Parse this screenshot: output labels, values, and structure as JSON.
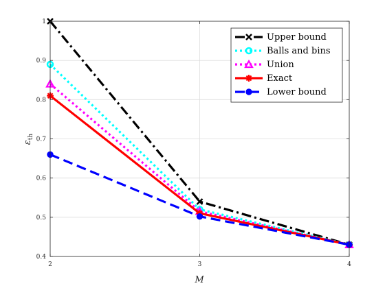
{
  "chart_data": {
    "type": "line",
    "xlabel": "M",
    "ylabel_main": "ε",
    "ylabel_sub": "th",
    "xlim": [
      2,
      4
    ],
    "ylim": [
      0.4,
      1.0
    ],
    "x": [
      2,
      3,
      4
    ],
    "xticks": [
      "2",
      "3",
      "4"
    ],
    "yticks": [
      "0.4",
      "0.5",
      "0.6",
      "0.7",
      "0.8",
      "0.9",
      "1"
    ],
    "grid": true,
    "legend_position": "top-right",
    "series": [
      {
        "name": "Upper bound",
        "values": [
          1.0,
          0.54,
          0.43
        ],
        "color": "#000000",
        "dash": "dashdot",
        "marker": "x"
      },
      {
        "name": "Balls and bins",
        "values": [
          0.89,
          0.52,
          0.43
        ],
        "color": "#00ffff",
        "dash": "dotted",
        "marker": "circle"
      },
      {
        "name": "Union",
        "values": [
          0.84,
          0.515,
          0.43
        ],
        "color": "#ff00ff",
        "dash": "dotted",
        "marker": "triangle"
      },
      {
        "name": "Exact",
        "values": [
          0.81,
          0.51,
          0.43
        ],
        "color": "#ff0000",
        "dash": "solid",
        "marker": "star"
      },
      {
        "name": "Lower bound",
        "values": [
          0.66,
          0.502,
          0.43
        ],
        "color": "#0000ff",
        "dash": "dashed",
        "marker": "dot"
      }
    ]
  }
}
